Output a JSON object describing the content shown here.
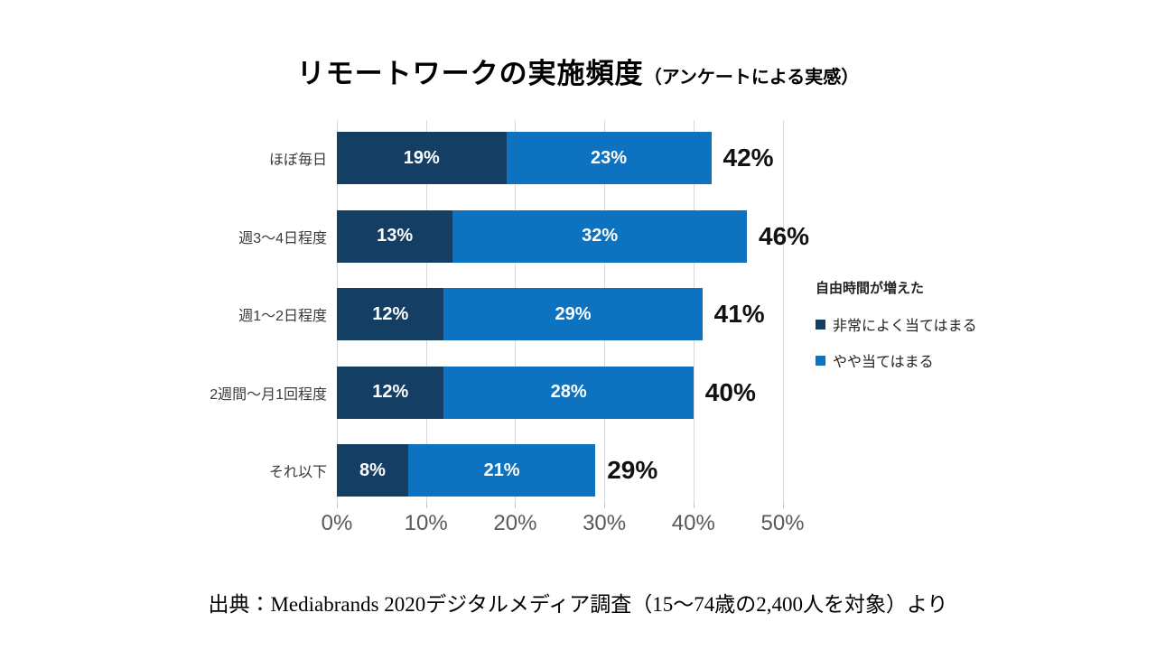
{
  "title": {
    "main": "リモートワークの実施頻度",
    "sub": "（アンケートによる実感）"
  },
  "chart_data": {
    "type": "bar",
    "orientation": "horizontal",
    "stacked": true,
    "unit": "%",
    "categories": [
      "ほぼ毎日",
      "週3〜4日程度",
      "週1〜2日程度",
      "2週間〜月1回程度",
      "それ以下"
    ],
    "series": [
      {
        "name": "非常によく当てはまる",
        "color": "#143e63",
        "values": [
          19,
          13,
          12,
          12,
          8
        ]
      },
      {
        "name": "やや当てはまる",
        "color": "#0d72c0",
        "values": [
          23,
          32,
          29,
          28,
          21
        ]
      }
    ],
    "totals": [
      42,
      46,
      41,
      40,
      29
    ],
    "xlim": [
      0,
      50
    ],
    "x_ticks": [
      "0%",
      "10%",
      "20%",
      "30%",
      "40%",
      "50%"
    ],
    "grid": true,
    "legend_title": "自由時間が増えた",
    "legend_position": "right",
    "colors": {
      "grid": "#d9d9d9",
      "axis_text": "#595959",
      "bar_label_text": "#ffffff",
      "total_text": "#111111"
    }
  },
  "footer": {
    "source": "出典：Mediabrands 2020デジタルメディア調査（15〜74歳の2,400人を対象）より"
  }
}
